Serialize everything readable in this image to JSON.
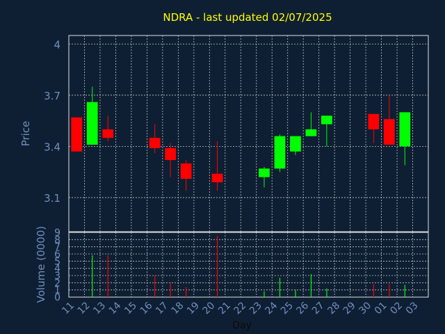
{
  "chart_data": [
    {
      "type": "candlestick",
      "title": "NDRA - last updated 02/07/2025",
      "ylabel": "Price",
      "ylim": [
        2.9,
        4.05
      ],
      "yticks": [
        "3.1",
        "3.4",
        "3.7",
        "4"
      ],
      "ytick_values": [
        3.1,
        3.4,
        3.7,
        4.0
      ],
      "grid": true,
      "colors": {
        "up": "#00ff00",
        "down": "#ff0000",
        "background": "#0f1f33",
        "grid": "#e0e0e0",
        "axis_text": "#6f8fbf",
        "title": "#ffff00"
      },
      "candles": [
        {
          "day": "11",
          "open": 3.57,
          "high": 3.57,
          "low": 3.37,
          "close": 3.37
        },
        {
          "day": "12",
          "open": 3.41,
          "high": 3.75,
          "low": 3.41,
          "close": 3.66
        },
        {
          "day": "13",
          "open": 3.5,
          "high": 3.58,
          "low": 3.43,
          "close": 3.45
        },
        {
          "day": "16",
          "open": 3.45,
          "high": 3.53,
          "low": 3.36,
          "close": 3.39
        },
        {
          "day": "17",
          "open": 3.39,
          "high": 3.42,
          "low": 3.22,
          "close": 3.32
        },
        {
          "day": "18",
          "open": 3.3,
          "high": 3.32,
          "low": 3.14,
          "close": 3.21
        },
        {
          "day": "20",
          "open": 3.24,
          "high": 3.43,
          "low": 3.14,
          "close": 3.19
        },
        {
          "day": "23",
          "open": 3.22,
          "high": 3.28,
          "low": 3.16,
          "close": 3.27
        },
        {
          "day": "24",
          "open": 3.27,
          "high": 3.47,
          "low": 3.25,
          "close": 3.46
        },
        {
          "day": "25",
          "open": 3.37,
          "high": 3.46,
          "low": 3.35,
          "close": 3.46
        },
        {
          "day": "26",
          "open": 3.46,
          "high": 3.6,
          "low": 3.46,
          "close": 3.5
        },
        {
          "day": "27",
          "open": 3.53,
          "high": 3.58,
          "low": 3.4,
          "close": 3.58
        },
        {
          "day": "30",
          "open": 3.59,
          "high": 3.59,
          "low": 3.42,
          "close": 3.5
        },
        {
          "day": "01",
          "open": 3.56,
          "high": 3.7,
          "low": 3.41,
          "close": 3.41
        },
        {
          "day": "02",
          "open": 3.4,
          "high": 3.6,
          "low": 3.29,
          "close": 3.6
        }
      ]
    },
    {
      "type": "bar",
      "ylabel": "Volume (0000)",
      "xlabel": "Day",
      "ylim": [
        0,
        9
      ],
      "yticks": [
        "0",
        "1",
        "2",
        "3",
        "4",
        "5",
        "6",
        "7",
        "8",
        "9"
      ],
      "categories": [
        "11",
        "12",
        "13",
        "14",
        "15",
        "16",
        "17",
        "18",
        "19",
        "20",
        "21",
        "22",
        "23",
        "24",
        "25",
        "26",
        "27",
        "28",
        "29",
        "30",
        "01",
        "02",
        "03"
      ],
      "values": [
        0,
        5.8,
        5.8,
        0,
        0,
        3.0,
        2.0,
        1.4,
        0,
        8.5,
        0,
        0,
        0.8,
        2.7,
        1.0,
        3.2,
        1.2,
        0,
        0,
        1.8,
        1.8,
        1.7,
        0
      ],
      "bar_colors": [
        "#ff0000",
        "#00ff00",
        "#ff0000",
        "#ff0000",
        "#ff0000",
        "#ff0000",
        "#ff0000",
        "#ff0000",
        "#ff0000",
        "#ff0000",
        "#ff0000",
        "#ff0000",
        "#00ff00",
        "#00ff00",
        "#00ff00",
        "#00ff00",
        "#00ff00",
        "#ff0000",
        "#ff0000",
        "#ff0000",
        "#ff0000",
        "#00ff00",
        "#00ff00"
      ]
    }
  ]
}
